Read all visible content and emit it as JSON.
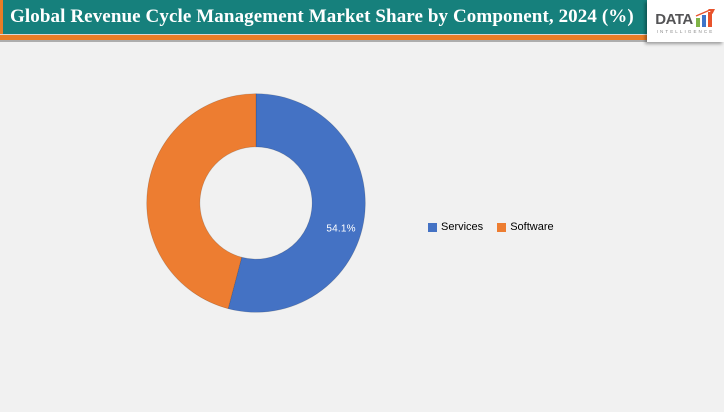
{
  "header": {
    "title": "Global Revenue Cycle Management Market Share by Component, 2024 (%)"
  },
  "logo": {
    "brand": "DATA",
    "subtext": "INTELLIGENCE",
    "bar_colors": [
      "#7FB346",
      "#3E74C9",
      "#E8532C"
    ],
    "arrow_color": "#E8532C"
  },
  "chart_data": {
    "type": "pie",
    "subtype": "donut",
    "title": "Global Revenue Cycle Management Market Share by Component, 2024 (%)",
    "categories": [
      "Services",
      "Software"
    ],
    "values": [
      54.1,
      45.9
    ],
    "colors": [
      "#4472C4",
      "#ED7D31"
    ],
    "visible_label": "54.1%",
    "legend_position": "right",
    "start_angle_deg": 0,
    "hole_ratio": 0.51
  },
  "legend": {
    "items": [
      {
        "label": "Services",
        "color": "#4472C4"
      },
      {
        "label": "Software",
        "color": "#ED7D31"
      }
    ]
  },
  "colors": {
    "header_bar": "#16807C",
    "accent_strip": "#E87D26",
    "background": "#F1F1F1",
    "label_text": "#FFFFFF"
  }
}
